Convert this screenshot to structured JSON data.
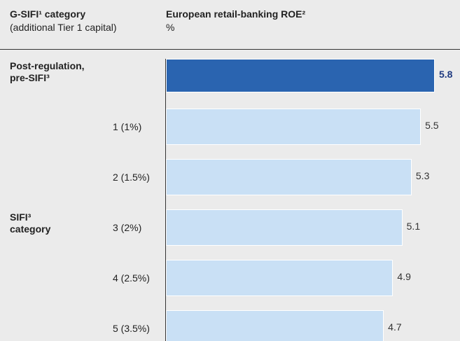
{
  "chart_data": {
    "type": "bar",
    "orientation": "horizontal",
    "category_header": "G-SIFI¹ category",
    "category_subheader": "(additional Tier 1 capital)",
    "title": "European retail-banking ROE²",
    "unit": "%",
    "categories": [
      "Post-regulation, pre-SIFI³",
      "1 (1%)",
      "2 (1.5%)",
      "3 (2%)",
      "4 (2.5%)",
      "5 (3.5%)"
    ],
    "group_label": "SIFI³ category",
    "values": [
      5.8,
      5.5,
      5.3,
      5.1,
      4.9,
      4.7
    ],
    "colors": [
      "#2a64b0",
      "#c9e0f5",
      "#c9e0f5",
      "#c9e0f5",
      "#c9e0f5",
      "#c9e0f5"
    ]
  }
}
